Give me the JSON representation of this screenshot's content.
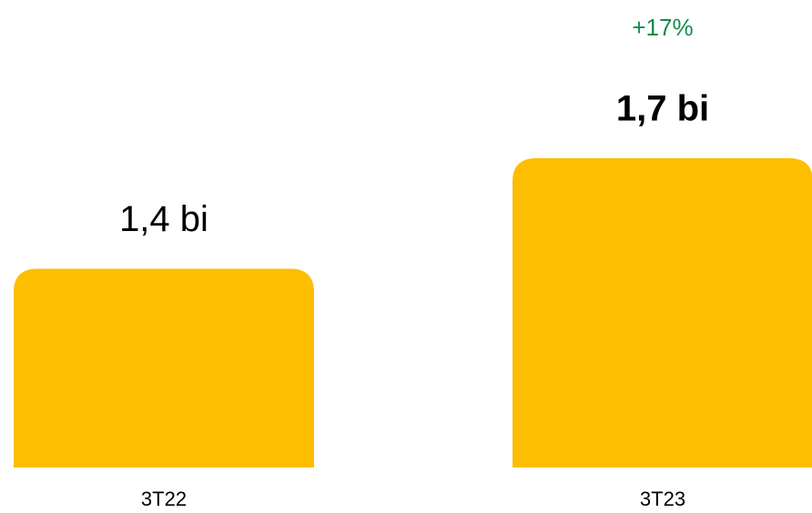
{
  "chart_data": {
    "type": "bar",
    "categories": [
      "3T22",
      "3T23"
    ],
    "values": [
      1.4,
      1.7
    ],
    "value_labels": [
      "1,4 bi",
      "1,7 bi"
    ],
    "color": "#fdbd00",
    "ylim": [
      0.86,
      2.13
    ],
    "annotations": [
      {
        "text": "+17%",
        "color": "#178a4c"
      }
    ]
  }
}
